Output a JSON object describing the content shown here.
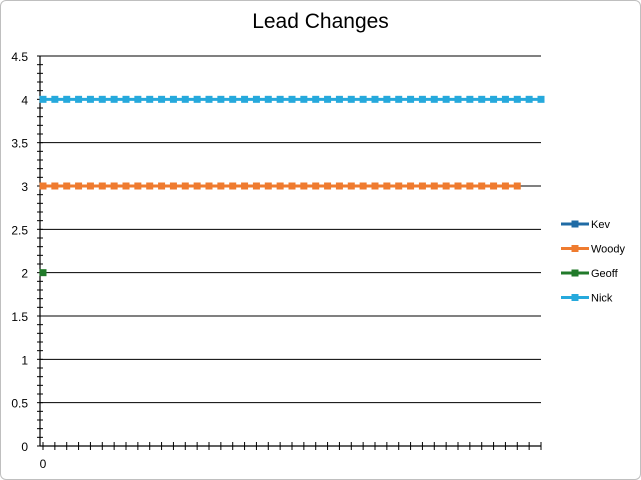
{
  "chart_data": {
    "type": "line",
    "title": "Lead Changes",
    "xlabel": "",
    "ylabel": "",
    "ylim": [
      0,
      4.5
    ],
    "yticks": [
      "0",
      "0.5",
      "1",
      "1.5",
      "2",
      "2.5",
      "3",
      "3.5",
      "4",
      "4.5"
    ],
    "x_tick_labels": [
      "0"
    ],
    "x_count": 43,
    "grid": true,
    "legend_position": "right",
    "series": [
      {
        "name": "Kev",
        "color": "#1f6ba5",
        "values": []
      },
      {
        "name": "Woody",
        "color": "#ef7b2f",
        "values": [
          3,
          3,
          3,
          3,
          3,
          3,
          3,
          3,
          3,
          3,
          3,
          3,
          3,
          3,
          3,
          3,
          3,
          3,
          3,
          3,
          3,
          3,
          3,
          3,
          3,
          3,
          3,
          3,
          3,
          3,
          3,
          3,
          3,
          3,
          3,
          3,
          3,
          3,
          3,
          3,
          3
        ]
      },
      {
        "name": "Geoff",
        "color": "#217a2a",
        "values": [
          2
        ]
      },
      {
        "name": "Nick",
        "color": "#26a9dc",
        "values": [
          4,
          4,
          4,
          4,
          4,
          4,
          4,
          4,
          4,
          4,
          4,
          4,
          4,
          4,
          4,
          4,
          4,
          4,
          4,
          4,
          4,
          4,
          4,
          4,
          4,
          4,
          4,
          4,
          4,
          4,
          4,
          4,
          4,
          4,
          4,
          4,
          4,
          4,
          4,
          4,
          4,
          4,
          4
        ]
      }
    ]
  }
}
